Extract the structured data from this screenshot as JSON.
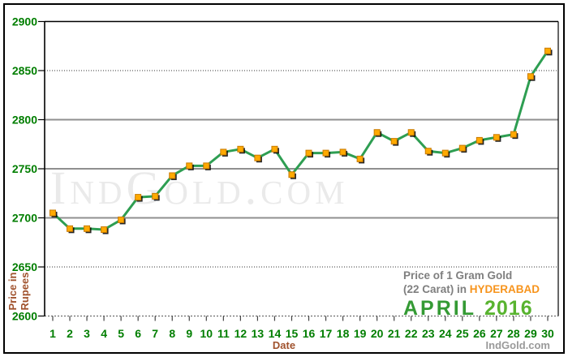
{
  "chart_data": {
    "type": "line",
    "title": "Price of 1 Gram Gold (22 Carat) in HYDERABAD - APRIL 2016",
    "xlabel": "Date",
    "ylabel": "Price in Rupees",
    "ylim": [
      2600,
      2900
    ],
    "yticks": [
      2900,
      2850,
      2800,
      2750,
      2700,
      2650,
      2600
    ],
    "x": [
      1,
      2,
      3,
      4,
      5,
      6,
      7,
      8,
      9,
      10,
      11,
      12,
      13,
      14,
      15,
      16,
      17,
      18,
      19,
      20,
      21,
      22,
      23,
      24,
      25,
      26,
      27,
      28,
      29,
      30
    ],
    "values": [
      2705,
      2689,
      2689,
      2688,
      2698,
      2721,
      2722,
      2743,
      2753,
      2753,
      2767,
      2770,
      2761,
      2770,
      2744,
      2766,
      2766,
      2767,
      2760,
      2787,
      2778,
      2787,
      2768,
      2766,
      2771,
      2779,
      2782,
      2785,
      2844,
      2870
    ],
    "grid": true,
    "legend_position": "bottom-right",
    "legend": {
      "line1": "Price of 1 Gram Gold",
      "line2_prefix": "(22 Carat) in ",
      "city": "HYDERABAD",
      "month": "APRIL",
      "year": "2016"
    }
  },
  "watermark": "IndGold.com",
  "footer_brand": "IndGold.com",
  "colors": {
    "green_labels": "#007e00",
    "line_green": "#2e9e52",
    "marker_orange": "#ffaa00",
    "marker_border": "#c87a00",
    "brown": "#a0522d",
    "title_gray": "#7f7f7f",
    "city_orange": "#f7941d",
    "month_green": "#349a34",
    "year_green": "#58b32f",
    "brand_gray": "#9a9a9a"
  }
}
